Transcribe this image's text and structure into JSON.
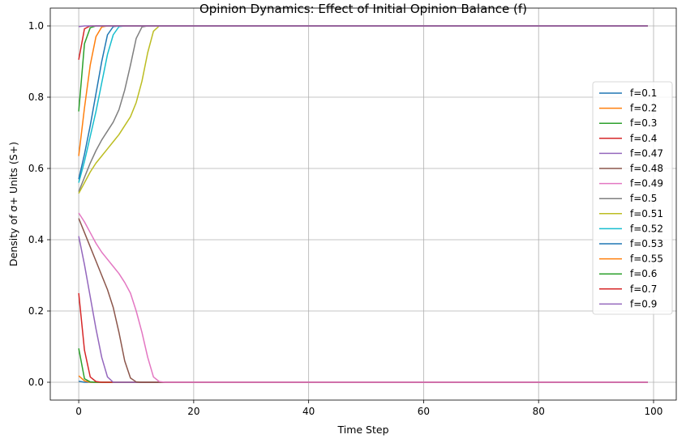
{
  "chart_data": {
    "type": "line",
    "title": "Opinion Dynamics: Effect of Initial Opinion Balance (f)",
    "xlabel": "Time Step",
    "ylabel": "Density of σ+ Units (S+)",
    "xlim": [
      -4.95,
      103.95
    ],
    "ylim": [
      -0.05,
      1.05
    ],
    "xticks": [
      0,
      20,
      40,
      60,
      80,
      100
    ],
    "xtick_labels": [
      "0",
      "20",
      "40",
      "60",
      "80",
      "100"
    ],
    "yticks": [
      0.0,
      0.2,
      0.4,
      0.6,
      0.8,
      1.0
    ],
    "ytick_labels": [
      "0.0",
      "0.2",
      "0.4",
      "0.6",
      "0.8",
      "1.0"
    ],
    "grid": true,
    "legend_position": "center-right",
    "x_last": 99,
    "series": [
      {
        "name": "f=0.1",
        "color": "#1f77b4",
        "values": [
          0.003,
          0.0
        ]
      },
      {
        "name": "f=0.2",
        "color": "#ff7f0e",
        "values": [
          0.018,
          0.004,
          0.0
        ]
      },
      {
        "name": "f=0.3",
        "color": "#2ca02c",
        "values": [
          0.095,
          0.01,
          0.001,
          0.0
        ]
      },
      {
        "name": "f=0.4",
        "color": "#d62728",
        "values": [
          0.25,
          0.09,
          0.015,
          0.002,
          0.0
        ]
      },
      {
        "name": "f=0.47",
        "color": "#9467bd",
        "values": [
          0.41,
          0.33,
          0.24,
          0.15,
          0.07,
          0.015,
          0.0
        ]
      },
      {
        "name": "f=0.48",
        "color": "#8c564b",
        "values": [
          0.46,
          0.42,
          0.38,
          0.34,
          0.3,
          0.26,
          0.21,
          0.14,
          0.06,
          0.012,
          0.001,
          0.0
        ]
      },
      {
        "name": "f=0.49",
        "color": "#e377c2",
        "values": [
          0.475,
          0.45,
          0.42,
          0.39,
          0.365,
          0.345,
          0.325,
          0.305,
          0.28,
          0.25,
          0.2,
          0.14,
          0.07,
          0.015,
          0.002,
          0.0
        ]
      },
      {
        "name": "f=0.5",
        "color": "#7f7f7f",
        "values": [
          0.535,
          0.575,
          0.615,
          0.65,
          0.68,
          0.705,
          0.73,
          0.765,
          0.82,
          0.89,
          0.965,
          0.997,
          1.0
        ]
      },
      {
        "name": "f=0.51",
        "color": "#bcbd22",
        "values": [
          0.53,
          0.56,
          0.59,
          0.615,
          0.635,
          0.655,
          0.675,
          0.695,
          0.72,
          0.745,
          0.785,
          0.845,
          0.925,
          0.985,
          1.0
        ]
      },
      {
        "name": "f=0.52",
        "color": "#17becf",
        "values": [
          0.56,
          0.62,
          0.69,
          0.76,
          0.84,
          0.92,
          0.975,
          0.998,
          1.0
        ]
      },
      {
        "name": "f=0.53",
        "color": "#1f77b4",
        "values": [
          0.57,
          0.64,
          0.72,
          0.81,
          0.9,
          0.975,
          0.998,
          1.0
        ]
      },
      {
        "name": "f=0.55",
        "color": "#ff7f0e",
        "values": [
          0.635,
          0.77,
          0.89,
          0.97,
          0.997,
          1.0
        ]
      },
      {
        "name": "f=0.6",
        "color": "#2ca02c",
        "values": [
          0.76,
          0.95,
          0.995,
          1.0
        ]
      },
      {
        "name": "f=0.7",
        "color": "#d62728",
        "values": [
          0.905,
          0.992,
          1.0
        ]
      },
      {
        "name": "f=0.9",
        "color": "#9467bd",
        "values": [
          0.998,
          1.0
        ]
      }
    ]
  }
}
